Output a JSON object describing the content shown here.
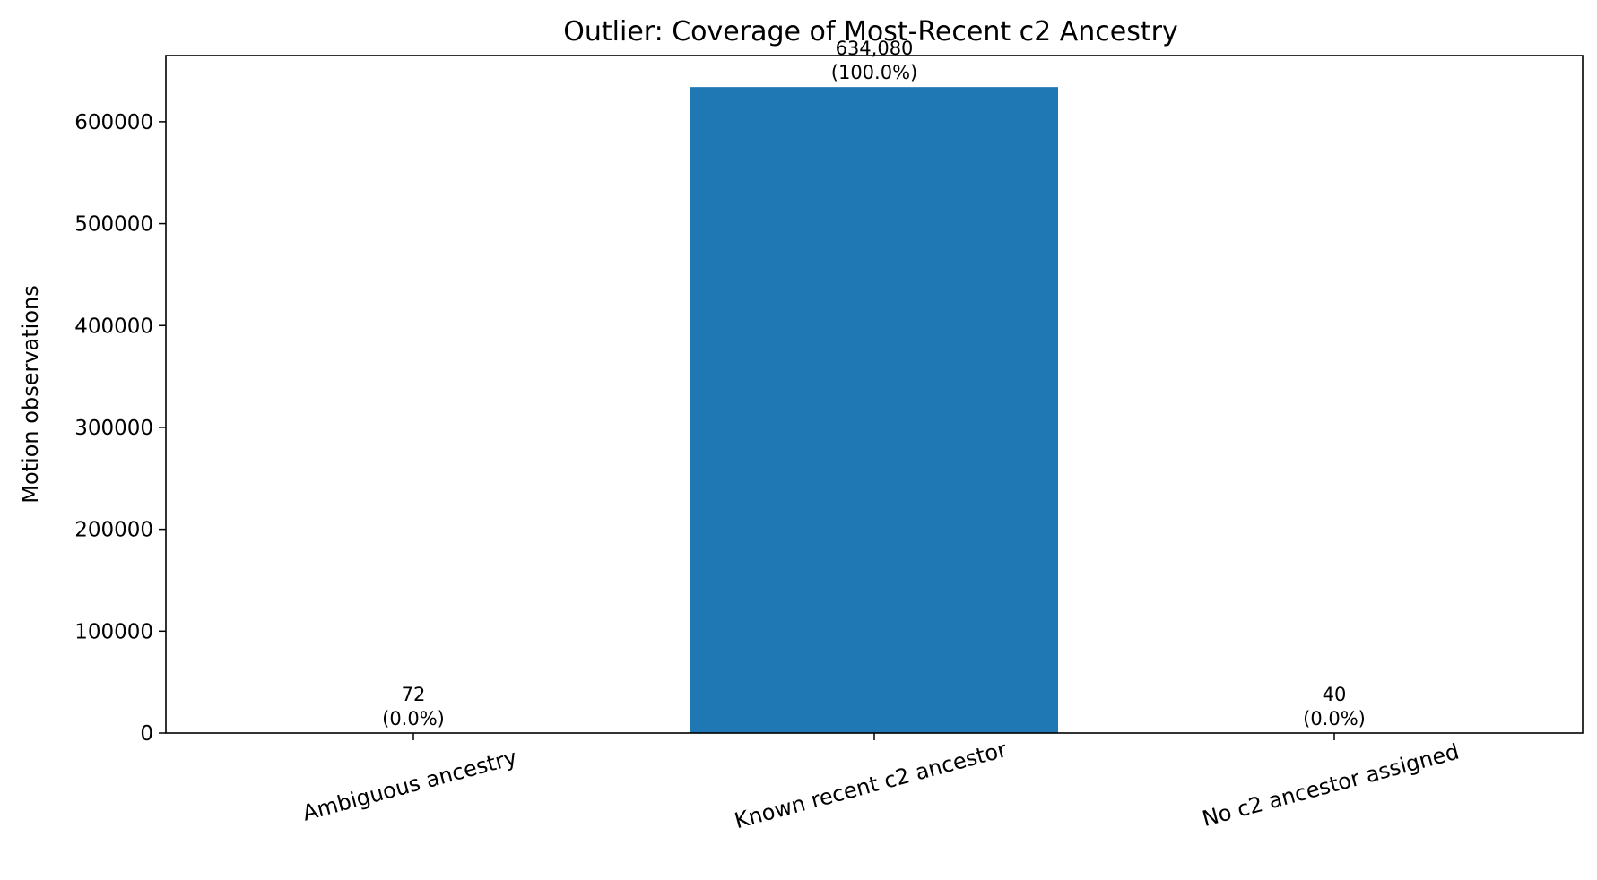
{
  "chart_data": {
    "type": "bar",
    "title": "Outlier: Coverage of Most-Recent c2 Ancestry",
    "xlabel": "",
    "ylabel": "Motion observations",
    "categories": [
      "Ambiguous ancestry",
      "Known recent c2 ancestor",
      "No c2 ancestor assigned"
    ],
    "values": [
      72,
      634080,
      40
    ],
    "value_labels": [
      "72",
      "634,080",
      "40"
    ],
    "percent_labels": [
      "(0.0%)",
      "(100.0%)",
      "(0.0%)"
    ],
    "ylim": [
      0,
      665000
    ],
    "yticks": [
      0,
      100000,
      200000,
      300000,
      400000,
      500000,
      600000
    ],
    "ytick_labels": [
      "0",
      "100000",
      "200000",
      "300000",
      "400000",
      "500000",
      "600000"
    ],
    "bar_color": "#1f77b4",
    "grid": false,
    "legend": "none"
  }
}
